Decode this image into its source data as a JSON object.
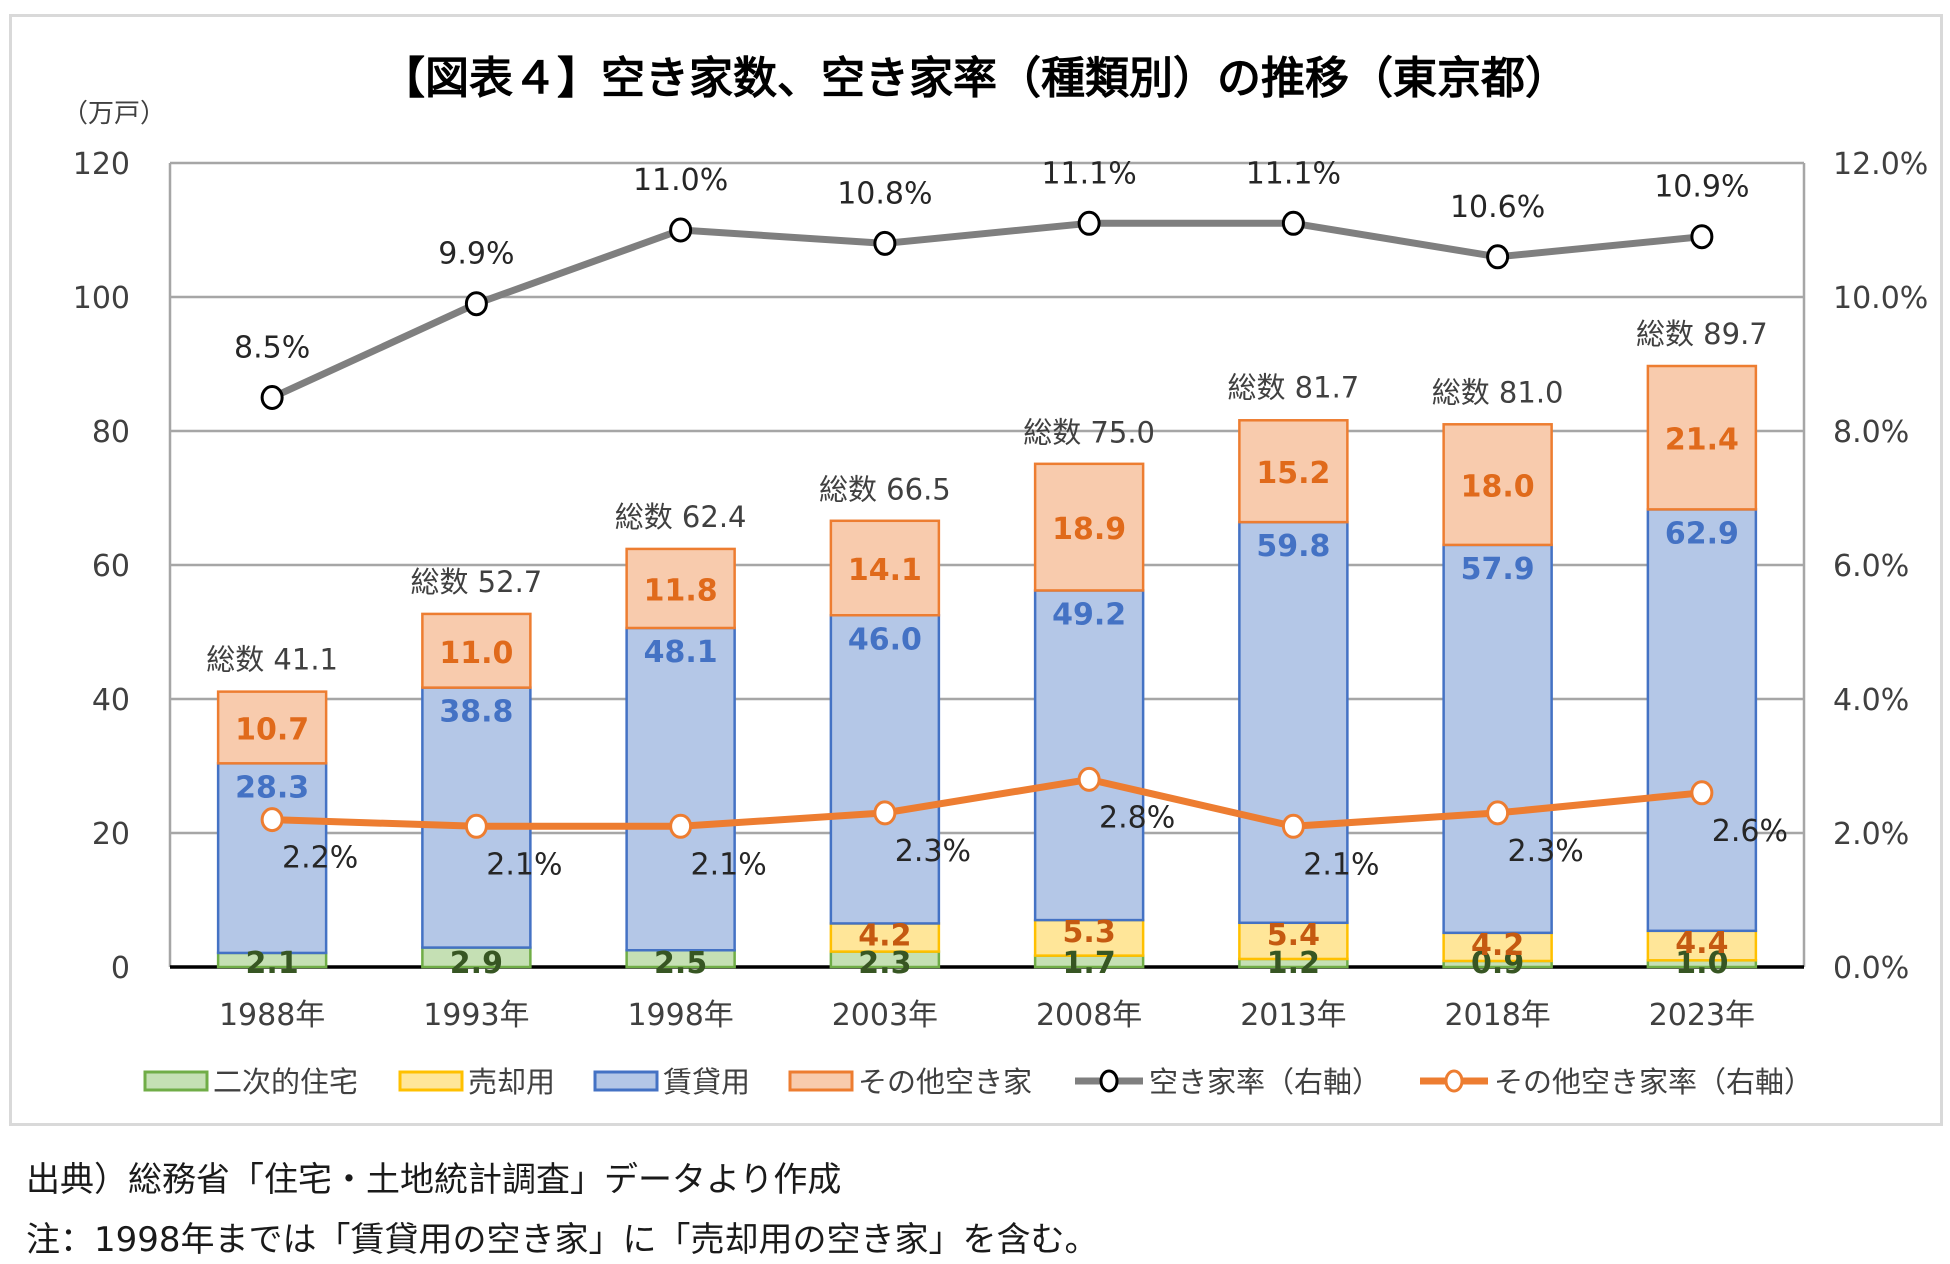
{
  "chart_data": {
    "type": "bar",
    "stacked": true,
    "title": "【図表４】空き家数、空き家率（種類別）の推移（東京都）",
    "ylabel_left_unit": "（万戸）",
    "categories": [
      "1988年",
      "1993年",
      "1998年",
      "2003年",
      "2008年",
      "2013年",
      "2018年",
      "2023年"
    ],
    "ylim_left": [
      0,
      120
    ],
    "yticks_left": [
      "0",
      "20",
      "40",
      "60",
      "80",
      "100",
      "120"
    ],
    "ylim_right": [
      0,
      12
    ],
    "yticks_right": [
      "0.0%",
      "2.0%",
      "4.0%",
      "6.0%",
      "8.0%",
      "10.0%",
      "12.0%"
    ],
    "grid": true,
    "legend_position": "bottom",
    "series": [
      {
        "name": "二次的住宅",
        "kind": "bar",
        "axis": "left",
        "color": "#c5e0b4",
        "edge": "#70ad47",
        "label_color": "#375623",
        "values": [
          2.1,
          2.9,
          2.5,
          2.3,
          1.7,
          1.2,
          0.9,
          1.0
        ],
        "labels": [
          "2.1",
          "2.9",
          "2.5",
          "2.3",
          "1.7",
          "1.2",
          "0.9",
          "1.0"
        ]
      },
      {
        "name": "売却用",
        "kind": "bar",
        "axis": "left",
        "color": "#ffe699",
        "edge": "#ffc000",
        "label_color": "#c55a11",
        "values": [
          0,
          0,
          0,
          4.2,
          5.3,
          5.4,
          4.2,
          4.4
        ],
        "labels": [
          "",
          "",
          "",
          "4.2",
          "5.3",
          "5.4",
          "4.2",
          "4.4"
        ]
      },
      {
        "name": "賃貸用",
        "kind": "bar",
        "axis": "left",
        "color": "#b4c7e7",
        "edge": "#4472c4",
        "label_color": "#4472c4",
        "values": [
          28.3,
          38.8,
          48.1,
          46.0,
          49.2,
          59.8,
          57.9,
          62.9
        ],
        "labels": [
          "28.3",
          "38.8",
          "48.1",
          "46.0",
          "49.2",
          "59.8",
          "57.9",
          "62.9"
        ]
      },
      {
        "name": "その他空き家",
        "kind": "bar",
        "axis": "left",
        "color": "#f8cbad",
        "edge": "#ed7d31",
        "label_color": "#e06a1b",
        "values": [
          10.7,
          11.0,
          11.8,
          14.1,
          18.9,
          15.2,
          18.0,
          21.4
        ],
        "labels": [
          "10.7",
          "11.0",
          "11.8",
          "14.1",
          "18.9",
          "15.2",
          "18.0",
          "21.4"
        ]
      },
      {
        "name": "空き家率（右軸）",
        "kind": "line",
        "axis": "right",
        "color": "#7f7f7f",
        "marker_edge": "#000000",
        "values": [
          8.5,
          9.9,
          11.0,
          10.8,
          11.1,
          11.1,
          10.6,
          10.9
        ],
        "labels": [
          "8.5%",
          "9.9%",
          "11.0%",
          "10.8%",
          "11.1%",
          "11.1%",
          "10.6%",
          "10.9%"
        ]
      },
      {
        "name": "その他空き家率（右軸）",
        "kind": "line",
        "axis": "right",
        "color": "#ed7d31",
        "marker_edge": "#ed7d31",
        "values": [
          2.2,
          2.1,
          2.1,
          2.3,
          2.8,
          2.1,
          2.3,
          2.6
        ],
        "labels": [
          "2.2%",
          "2.1%",
          "2.1%",
          "2.3%",
          "2.8%",
          "2.1%",
          "2.3%",
          "2.6%"
        ]
      }
    ],
    "totals": {
      "prefix": "総数",
      "values": [
        41.1,
        52.7,
        62.4,
        66.5,
        75.0,
        81.7,
        81.0,
        89.7
      ],
      "labels": [
        "総数 41.1",
        "総数 52.7",
        "総数 62.4",
        "総数 66.5",
        "総数 75.0",
        "総数 81.7",
        "総数 81.0",
        "総数 89.7"
      ]
    }
  },
  "notes": {
    "source": "出典）総務省「住宅・土地統計調査」データより作成",
    "note": "注：1998年までは「賃貸用の空き家」に「売却用の空き家」を含む。"
  }
}
